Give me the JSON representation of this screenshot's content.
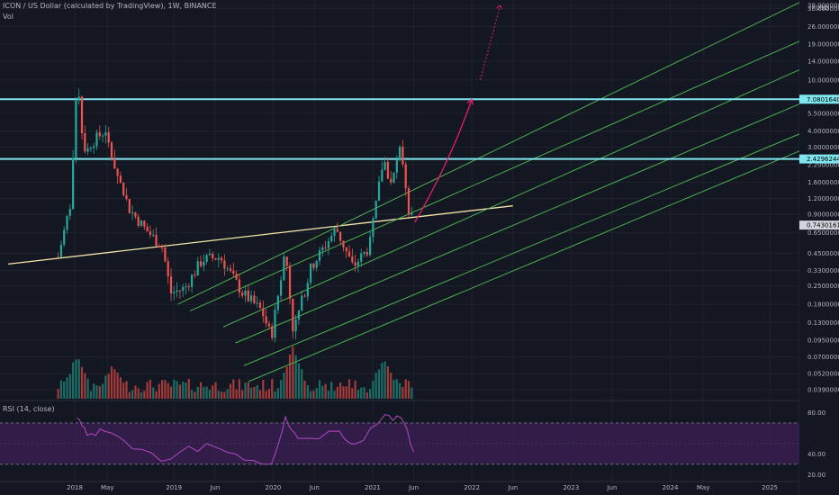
{
  "header": {
    "title": "ICON / US Dollar (calculated by TradingView), 1W, BINANCE",
    "vol_label": "Vol",
    "rsi_label": "RSI (14, close)",
    "price_unit": "USD"
  },
  "colors": {
    "background": "#131722",
    "up": "#26a69a",
    "down": "#ef5350",
    "vol_up": "#1b6e66",
    "vol_down": "#a53a3a",
    "channel": "#4caf50",
    "trendline": "#f3e5a9",
    "horizontal_level": "#7fe6f0",
    "arrow": "#e91e63",
    "rsi_line": "#b04ac0",
    "rsi_band": "#3b1f54",
    "text": "#b2b5be"
  },
  "chart_data": {
    "type": "candlestick",
    "title": "ICON / US Dollar (calculated by TradingView), 1W, BINANCE",
    "scale": "log",
    "y_unit": "USD",
    "y_ticks": [
      38.0,
      36.0,
      26.0,
      19.0,
      14.0,
      10.0,
      5.5,
      4.0,
      3.0,
      2.2,
      1.6,
      1.2,
      0.9,
      0.65,
      0.45,
      0.33,
      0.25,
      0.18,
      0.13,
      0.095,
      0.07,
      0.052,
      0.039
    ],
    "y_tick_labels": [
      "38.00000000",
      "36.00000000",
      "26.00000000",
      "19.00000000",
      "14.00000000",
      "10.00000000",
      "5.50000000",
      "4.00000000",
      "3.00000000",
      "2.20000000",
      "1.60000000",
      "1.20000000",
      "0.90000000",
      "0.65000000",
      "0.45000000",
      "0.33000000",
      "0.25000000",
      "0.18000000",
      "0.13000000",
      "0.09500000",
      "0.07000000",
      "0.05200000",
      "0.03900000"
    ],
    "x_ticks": [
      "2018",
      "May",
      "2019",
      "Jun",
      "2020",
      "Jun",
      "2021",
      "Jun",
      "2022",
      "Jun",
      "2023",
      "Jun",
      "2024",
      "May",
      "2025"
    ],
    "x_tick_dates": [
      "2018-01-01",
      "2018-05-01",
      "2019-01-01",
      "2019-06-01",
      "2020-01-01",
      "2020-06-01",
      "2021-01-01",
      "2021-06-01",
      "2022-01-01",
      "2022-06-01",
      "2023-01-01",
      "2023-06-01",
      "2024-01-01",
      "2024-05-01",
      "2025-01-01"
    ],
    "x_range": [
      "2017-04-01",
      "2025-04-20"
    ],
    "price_points": [
      {
        "date": "2017-11-01",
        "price": 0.42
      },
      {
        "date": "2017-12-20",
        "price": 1.2
      },
      {
        "date": "2018-01-10",
        "price": 12.0
      },
      {
        "date": "2018-02-01",
        "price": 3.0
      },
      {
        "date": "2018-03-01",
        "price": 3.2
      },
      {
        "date": "2018-04-20",
        "price": 4.0
      },
      {
        "date": "2018-06-01",
        "price": 2.0
      },
      {
        "date": "2018-07-20",
        "price": 1.0
      },
      {
        "date": "2018-09-15",
        "price": 0.7
      },
      {
        "date": "2018-11-20",
        "price": 0.5
      },
      {
        "date": "2018-12-20",
        "price": 0.22
      },
      {
        "date": "2019-02-10",
        "price": 0.24
      },
      {
        "date": "2019-04-15",
        "price": 0.4
      },
      {
        "date": "2019-06-20",
        "price": 0.42
      },
      {
        "date": "2019-09-10",
        "price": 0.22
      },
      {
        "date": "2019-11-20",
        "price": 0.16
      },
      {
        "date": "2019-12-25",
        "price": 0.1
      },
      {
        "date": "2020-02-15",
        "price": 0.48
      },
      {
        "date": "2020-03-15",
        "price": 0.11
      },
      {
        "date": "2020-05-20",
        "price": 0.35
      },
      {
        "date": "2020-08-20",
        "price": 0.7
      },
      {
        "date": "2020-10-20",
        "price": 0.35
      },
      {
        "date": "2020-12-20",
        "price": 0.5
      },
      {
        "date": "2021-02-10",
        "price": 2.5
      },
      {
        "date": "2021-03-10",
        "price": 1.5
      },
      {
        "date": "2021-04-15",
        "price": 3.0
      },
      {
        "date": "2021-05-15",
        "price": 0.95
      },
      {
        "date": "2021-06-01",
        "price": 0.74
      }
    ],
    "volume_peaks": [
      {
        "date": "2018-01-10",
        "level": 0.75
      },
      {
        "date": "2018-05-20",
        "level": 0.55
      },
      {
        "date": "2020-03-15",
        "level": 0.9
      },
      {
        "date": "2021-02-10",
        "level": 0.7
      }
    ],
    "horizontal_levels": [
      {
        "price": 7.08016403,
        "label": "7.08016403"
      },
      {
        "price": 2.42962444,
        "label": "2.42962444"
      }
    ],
    "current_price": {
      "price": 0.74301614,
      "label": "0.74301614"
    },
    "trendline": [
      {
        "date": "2017-05-01",
        "price": 0.37
      },
      {
        "date": "2022-06-01",
        "price": 1.05
      }
    ],
    "channel_lines": [
      [
        {
          "date": "2019-01-15",
          "price": 0.18
        },
        {
          "date": "2025-04-20",
          "price": 40.0
        }
      ],
      [
        {
          "date": "2019-03-01",
          "price": 0.16
        },
        {
          "date": "2025-04-20",
          "price": 20.0
        }
      ],
      [
        {
          "date": "2019-07-01",
          "price": 0.12
        },
        {
          "date": "2025-04-20",
          "price": 12.0
        }
      ],
      [
        {
          "date": "2019-08-15",
          "price": 0.09
        },
        {
          "date": "2025-04-20",
          "price": 6.5
        }
      ],
      [
        {
          "date": "2019-09-15",
          "price": 0.06
        },
        {
          "date": "2025-04-20",
          "price": 3.8
        }
      ],
      [
        {
          "date": "2019-10-01",
          "price": 0.045
        },
        {
          "date": "2025-04-20",
          "price": 2.8
        }
      ]
    ],
    "projection_arrow": [
      {
        "date": "2021-06-05",
        "price": 0.78
      },
      {
        "date": "2022-01-01",
        "price": 7.08
      }
    ],
    "projection_dotted": [
      {
        "date": "2022-02-01",
        "price": 10.0
      },
      {
        "date": "2022-04-15",
        "price": 38.0
      }
    ],
    "rsi": {
      "label": "RSI (14, close)",
      "ticks": [
        80.0,
        40.0,
        20.0
      ],
      "tick_labels": [
        "80.00",
        "40.00",
        "20.00"
      ],
      "band_levels": [
        70,
        30
      ],
      "points": [
        {
          "date": "2018-01-10",
          "value": 75
        },
        {
          "date": "2018-02-15",
          "value": 58
        },
        {
          "date": "2018-04-20",
          "value": 62
        },
        {
          "date": "2018-08-01",
          "value": 45
        },
        {
          "date": "2018-12-20",
          "value": 35
        },
        {
          "date": "2019-05-01",
          "value": 50
        },
        {
          "date": "2019-08-15",
          "value": 40
        },
        {
          "date": "2019-12-25",
          "value": 30
        },
        {
          "date": "2020-02-15",
          "value": 76
        },
        {
          "date": "2020-04-01",
          "value": 55
        },
        {
          "date": "2020-09-01",
          "value": 62
        },
        {
          "date": "2020-11-01",
          "value": 50
        },
        {
          "date": "2021-02-15",
          "value": 78
        },
        {
          "date": "2021-04-15",
          "value": 75
        },
        {
          "date": "2021-06-01",
          "value": 42
        }
      ]
    }
  }
}
